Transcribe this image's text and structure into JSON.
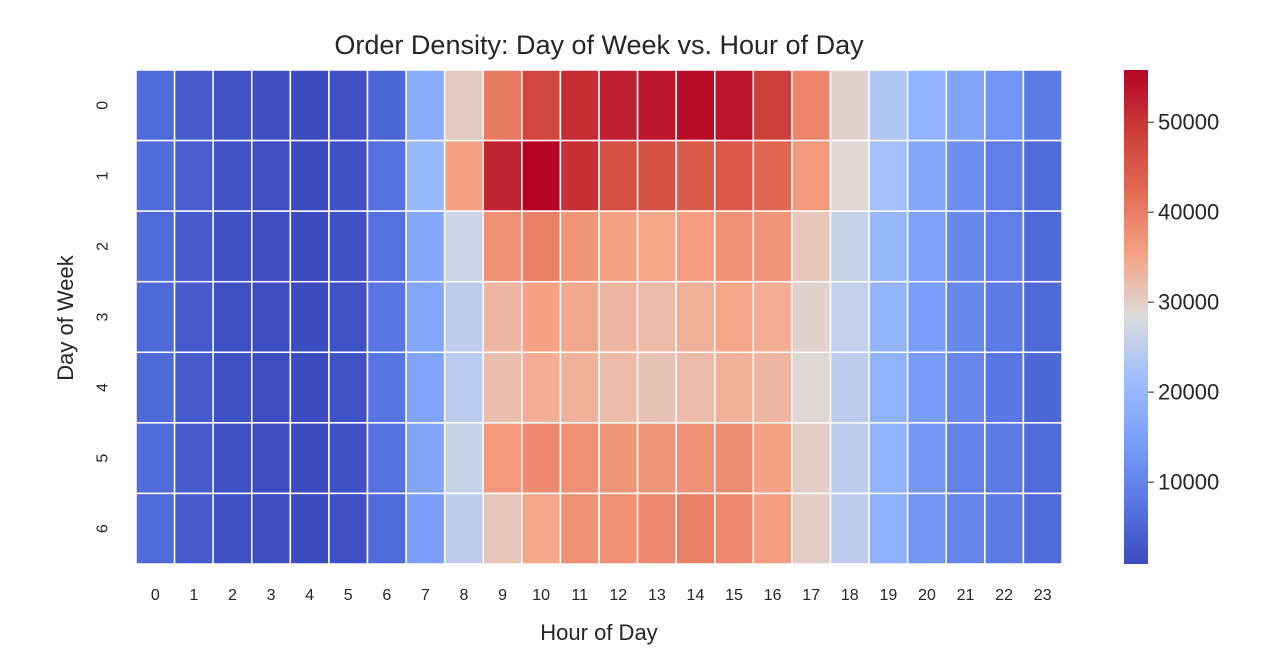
{
  "chart_data": {
    "type": "heatmap",
    "title": "Order Density: Day of Week vs. Hour of Day",
    "xlabel": "Hour of Day",
    "ylabel": "Day of Week",
    "x_categories": [
      "0",
      "1",
      "2",
      "3",
      "4",
      "5",
      "6",
      "7",
      "8",
      "9",
      "10",
      "11",
      "12",
      "13",
      "14",
      "15",
      "16",
      "17",
      "18",
      "19",
      "20",
      "21",
      "22",
      "23"
    ],
    "y_categories": [
      "0",
      "1",
      "2",
      "3",
      "4",
      "5",
      "6"
    ],
    "values": [
      [
        5800,
        3500,
        2000,
        1200,
        800,
        1500,
        5000,
        17500,
        30500,
        40000,
        47500,
        51000,
        52500,
        53500,
        55000,
        54000,
        48500,
        39000,
        29500,
        23500,
        19000,
        16000,
        13000,
        8500
      ],
      [
        6200,
        3800,
        2200,
        1300,
        900,
        1800,
        6800,
        20500,
        35500,
        52000,
        55800,
        50500,
        46500,
        46000,
        44500,
        45000,
        43000,
        36500,
        29000,
        22000,
        16500,
        12000,
        9000,
        6000
      ],
      [
        5700,
        3300,
        1800,
        1100,
        800,
        1900,
        7000,
        16500,
        26500,
        37500,
        39500,
        37000,
        35500,
        35000,
        36000,
        37500,
        37000,
        31000,
        26000,
        20000,
        15000,
        11000,
        9000,
        5500
      ],
      [
        5600,
        3200,
        1700,
        1100,
        900,
        2000,
        7500,
        16200,
        25000,
        33000,
        35200,
        34500,
        33000,
        32500,
        33500,
        35000,
        34000,
        29500,
        25500,
        19500,
        14500,
        11000,
        8500,
        5500
      ],
      [
        5500,
        3300,
        1800,
        1100,
        900,
        2000,
        7400,
        15800,
        24500,
        32000,
        34000,
        33500,
        32500,
        31500,
        32500,
        33500,
        33000,
        29000,
        25000,
        19000,
        14000,
        10500,
        8000,
        5300
      ],
      [
        5900,
        3400,
        1800,
        1100,
        800,
        1800,
        7000,
        16000,
        26000,
        36500,
        38500,
        37500,
        37000,
        37000,
        37500,
        38000,
        35500,
        30000,
        25000,
        19000,
        13500,
        9800,
        8200,
        6000
      ],
      [
        5800,
        3400,
        1800,
        1100,
        800,
        1500,
        5800,
        14500,
        25000,
        31000,
        35000,
        37500,
        37500,
        38500,
        39500,
        38500,
        36000,
        30000,
        25000,
        18500,
        13000,
        10000,
        8200,
        6000
      ]
    ],
    "colormap": "coolwarm",
    "vmin": 900,
    "vmax": 55800,
    "colorbar_ticks": [
      10000,
      20000,
      30000,
      40000,
      50000
    ],
    "colorbar_tick_labels": [
      "10000",
      "20000",
      "30000",
      "40000",
      "50000"
    ]
  }
}
